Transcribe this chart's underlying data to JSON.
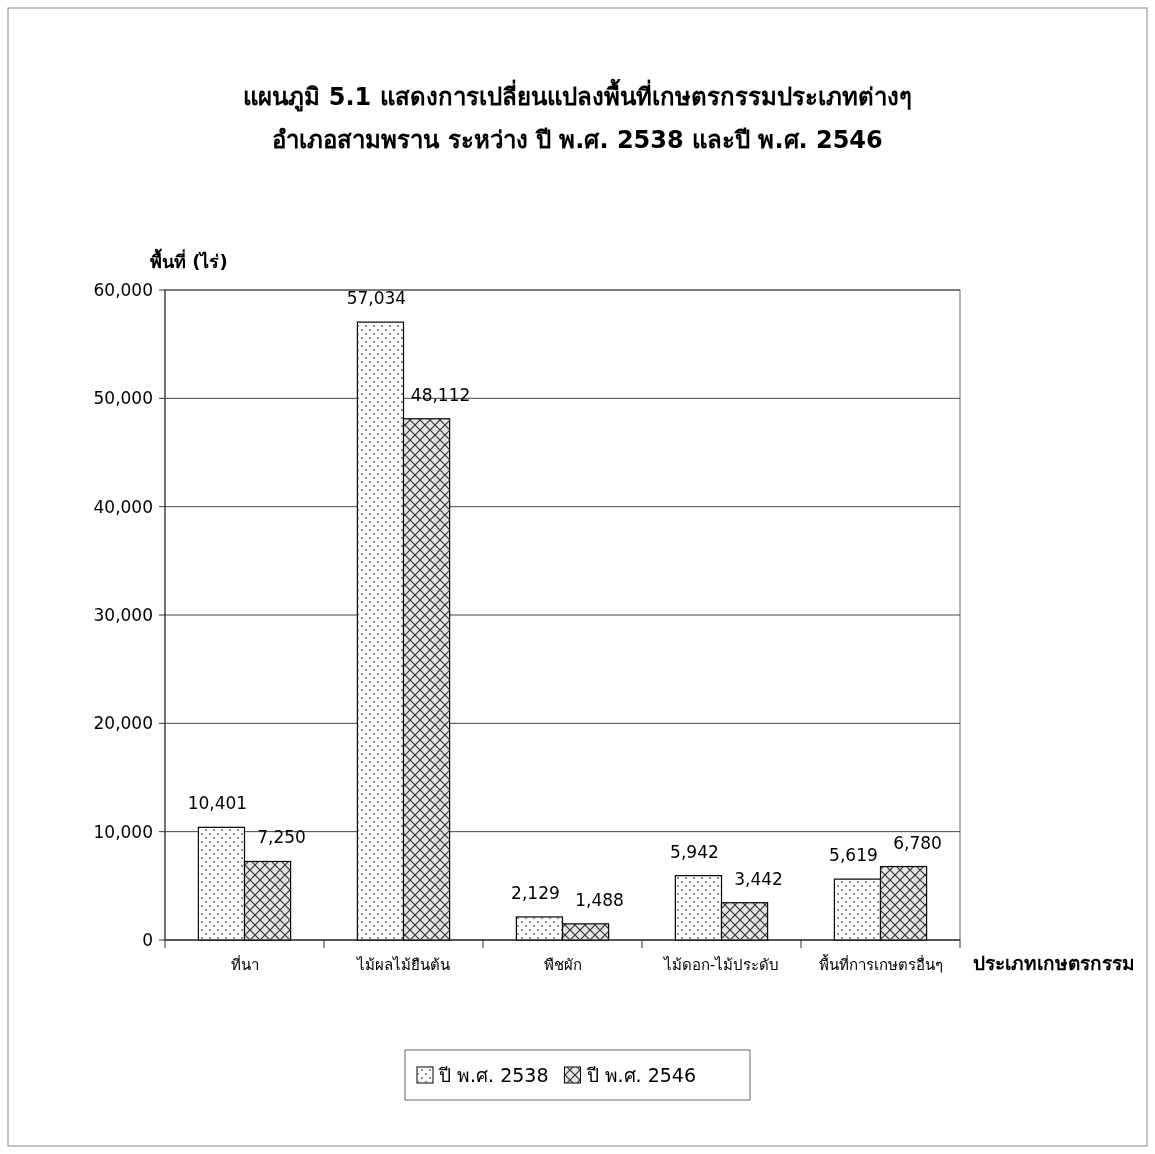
{
  "chart_data": {
    "type": "bar",
    "title": "แผนภูมิ 5.1  แสดงการเปลี่ยนแปลงพื้นที่เกษตรกรรมประเภทต่างๆ",
    "subtitle": "อำเภอสามพราน  ระหว่าง ปี พ.ศ. 2538 และปี พ.ศ. 2546",
    "xlabel": "ประเภทเกษตรกรรม",
    "ylabel": "พื้นที่ (ไร่)",
    "categories": [
      "ที่นา",
      "ไม้ผลไม้ยืนต้น",
      "พืชผัก",
      "ไม้ดอก-ไม้ประดับ",
      "พื้นที่การเกษตรอื่นๆ"
    ],
    "series": [
      {
        "name": "ปี พ.ศ. 2538",
        "color": "#ffffff",
        "values": [
          10401,
          57034,
          2129,
          5942,
          5619
        ],
        "value_labels": [
          "10,401",
          "57,034",
          "2,129",
          "5,942",
          "5,619"
        ]
      },
      {
        "name": "ปี พ.ศ. 2546",
        "color": "#e6e6e6",
        "values": [
          7250,
          48112,
          1488,
          3442,
          6780
        ],
        "value_labels": [
          "7,250",
          "48,112",
          "1,488",
          "3,442",
          "6,780"
        ]
      }
    ],
    "ylim": [
      0,
      60000
    ],
    "yticks": [
      {
        "value": 0,
        "label": "0"
      },
      {
        "value": 10000,
        "label": "10,000"
      },
      {
        "value": 20000,
        "label": "20,000"
      },
      {
        "value": 30000,
        "label": "30,000"
      },
      {
        "value": 40000,
        "label": "40,000"
      },
      {
        "value": 50000,
        "label": "50,000"
      },
      {
        "value": 60000,
        "label": "60,000"
      }
    ],
    "grid": "y",
    "legend": "bottom"
  }
}
